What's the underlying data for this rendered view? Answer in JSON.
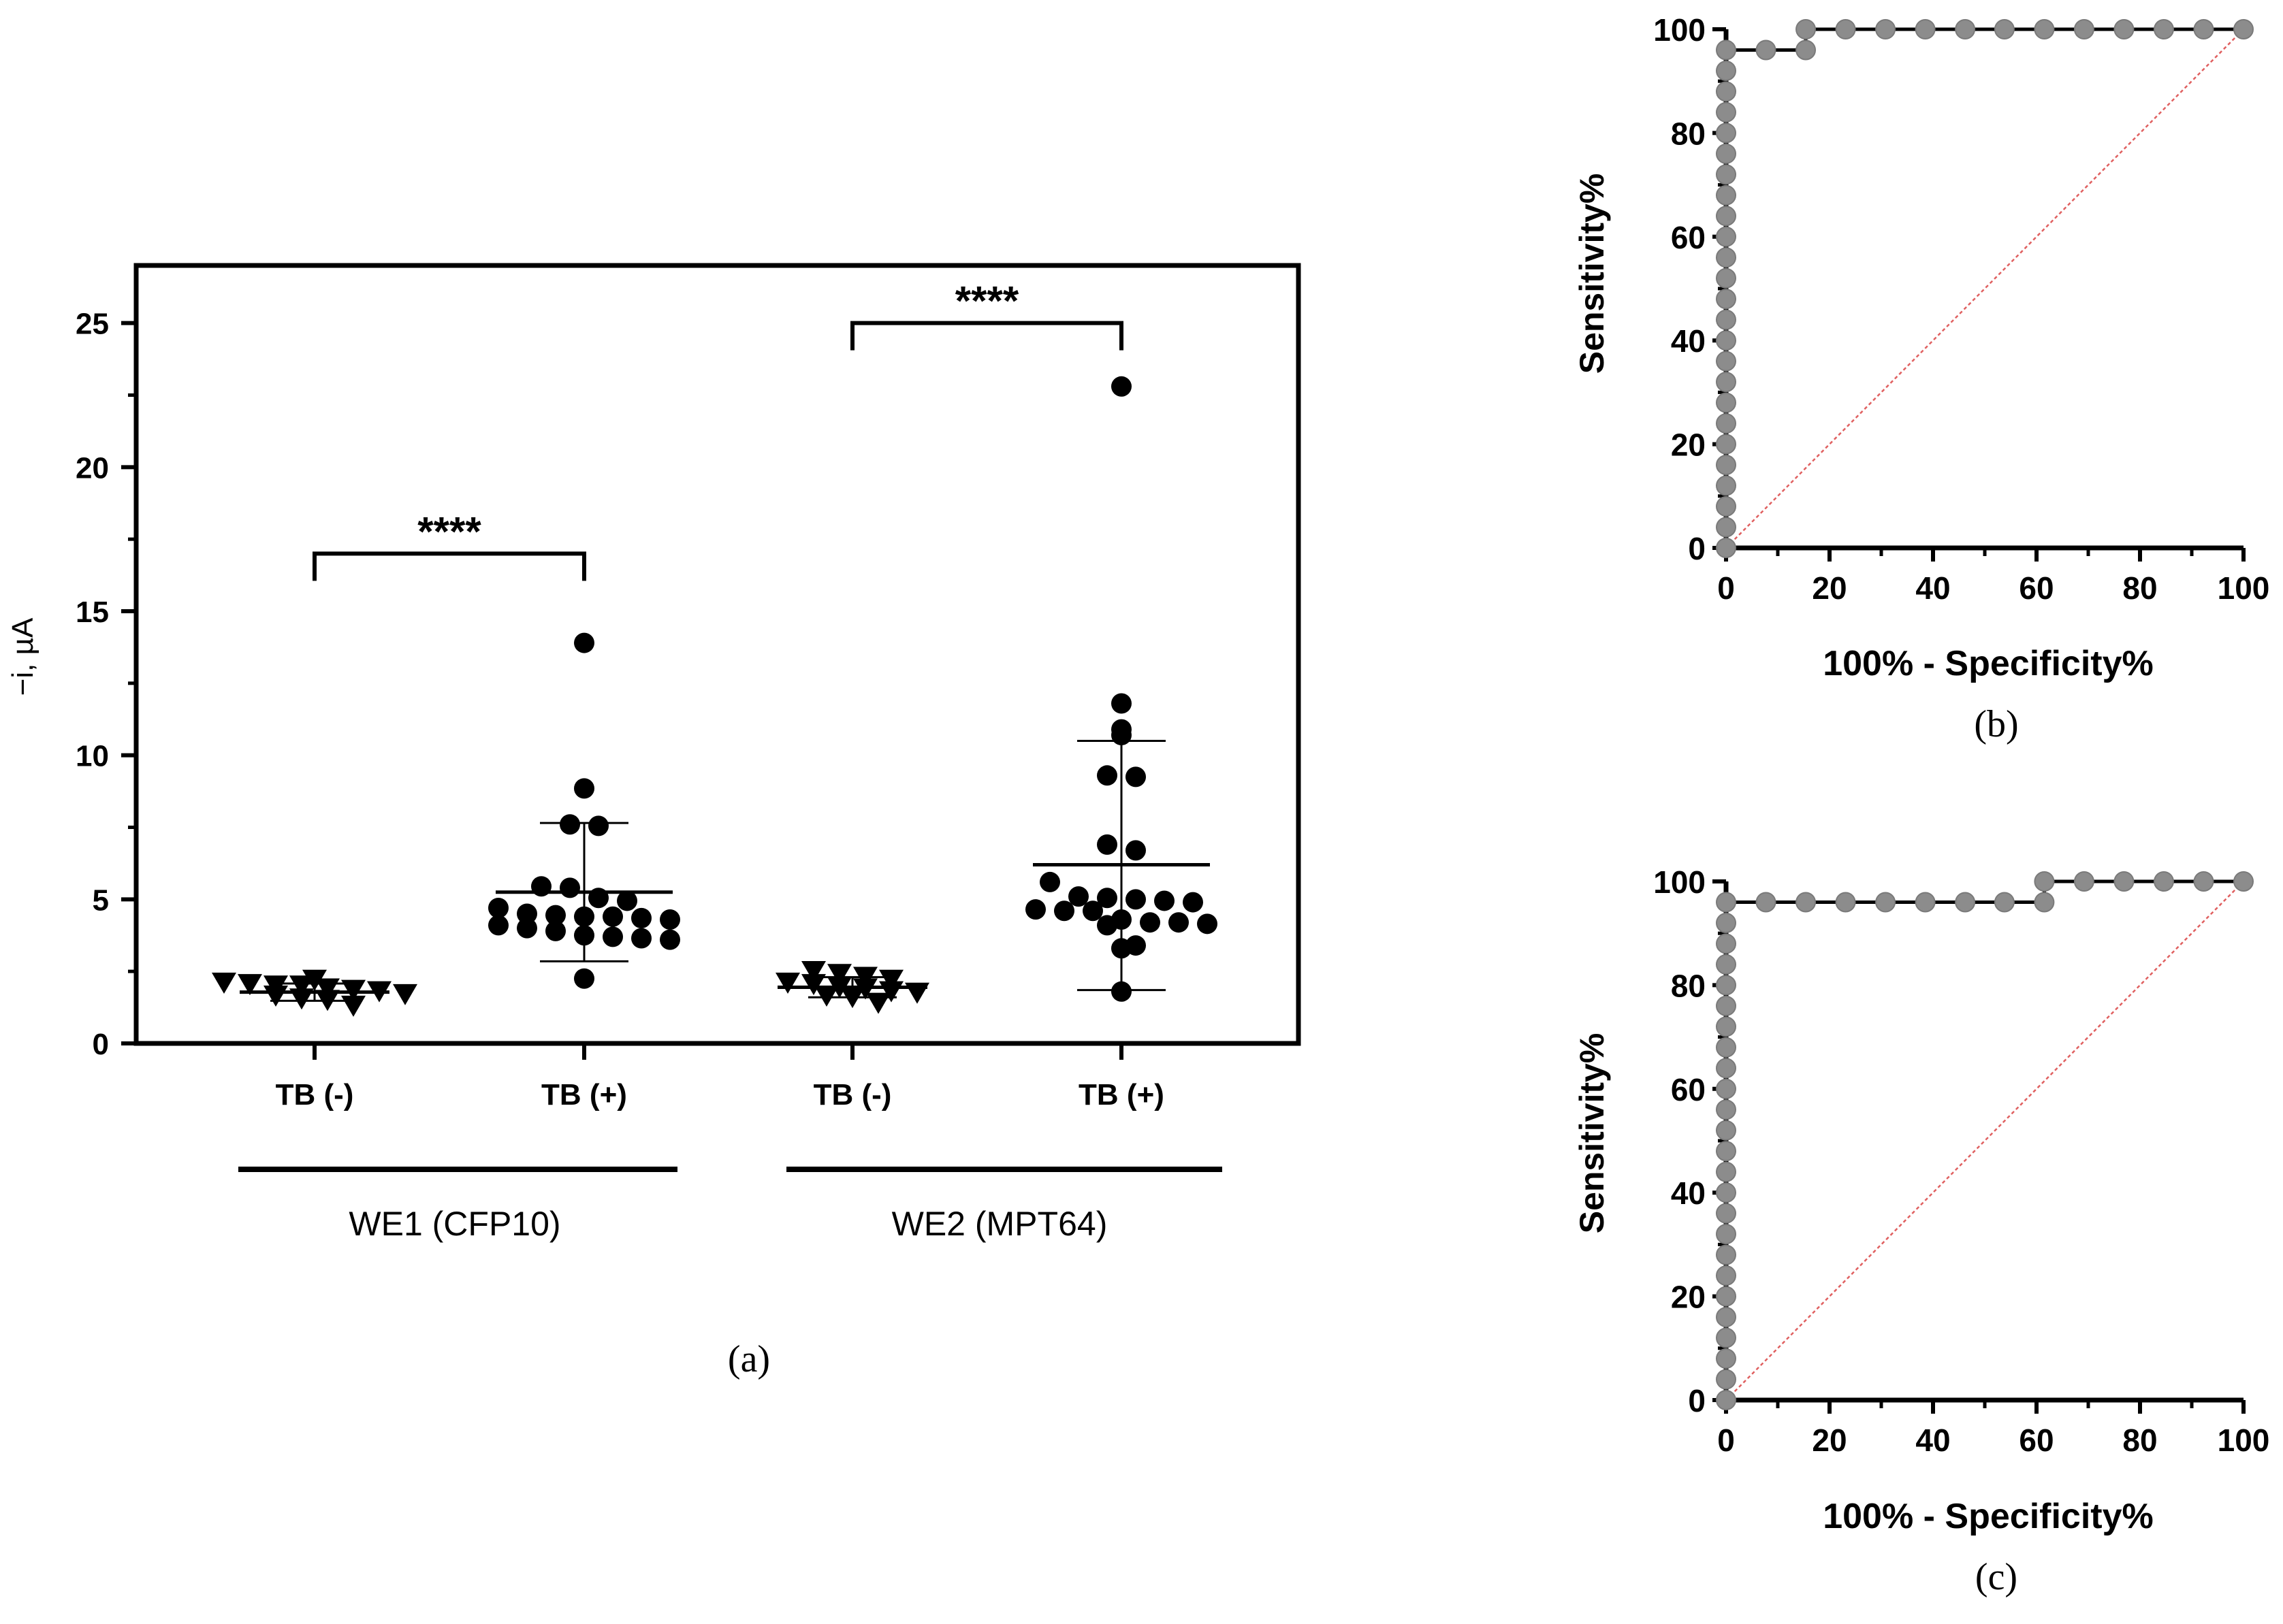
{
  "chart_data": [
    {
      "id": "a",
      "type": "scatter",
      "panel_label": "(a)",
      "title": "",
      "ylabel": "−i, µA",
      "ylim": [
        0,
        27
      ],
      "yticks": [
        0,
        5,
        10,
        15,
        20,
        25
      ],
      "categories": [
        "TB (-)",
        "TB (+)",
        "TB (-)",
        "TB (+)"
      ],
      "groups": [
        {
          "name": "WE1 (CFP10)",
          "categories": [
            0,
            1
          ]
        },
        {
          "name": "WE2 (MPT64)",
          "categories": [
            2,
            3
          ]
        }
      ],
      "series": [
        {
          "name": "WE1 TB (-)",
          "category": 0,
          "marker": "triangle-down",
          "values": [
            1.95,
            1.7,
            2.05,
            1.55,
            2.25,
            1.9,
            1.35,
            2.15,
            1.6,
            2.1,
            1.75,
            1.85,
            2.05
          ],
          "mean": 1.78,
          "sd_low": 1.48,
          "sd_high": 2.08
        },
        {
          "name": "WE1 TB (+)",
          "category": 1,
          "marker": "circle",
          "values": [
            13.9,
            8.85,
            7.55,
            7.6,
            5.45,
            5.4,
            5.05,
            4.95,
            4.7,
            4.5,
            4.45,
            4.4,
            4.4,
            4.35,
            4.3,
            4.1,
            4.0,
            3.9,
            3.75,
            3.7,
            3.65,
            3.6,
            2.25
          ],
          "mean": 5.25,
          "sd_low": 2.85,
          "sd_high": 7.65
        },
        {
          "name": "WE2 TB (-)",
          "category": 2,
          "marker": "triangle-down",
          "values": [
            2.1,
            1.85,
            2.35,
            1.65,
            2.45,
            2.0,
            1.45,
            2.25,
            1.7,
            2.55,
            1.8,
            1.95,
            2.15
          ],
          "mean": 1.95,
          "sd_low": 1.6,
          "sd_high": 2.3
        },
        {
          "name": "WE2 TB (+)",
          "category": 3,
          "marker": "circle",
          "values": [
            22.8,
            11.8,
            10.9,
            10.7,
            9.3,
            9.25,
            6.9,
            6.7,
            5.6,
            5.1,
            5.05,
            5.0,
            4.95,
            4.9,
            4.65,
            4.6,
            4.6,
            4.3,
            4.2,
            4.2,
            4.15,
            4.1,
            3.4,
            3.3,
            1.8
          ],
          "mean": 6.2,
          "sd_low": 1.85,
          "sd_high": 10.5
        }
      ],
      "significance": [
        {
          "between": [
            0,
            1
          ],
          "label": "****",
          "y": 17
        },
        {
          "between": [
            2,
            3
          ],
          "label": "****",
          "y": 25
        }
      ]
    },
    {
      "id": "b",
      "type": "line",
      "panel_label": "(b)",
      "xlabel": "100% - Specificity%",
      "ylabel": "Sensitivity%",
      "xlim": [
        0,
        100
      ],
      "ylim": [
        0,
        100
      ],
      "xticks": [
        0,
        20,
        40,
        60,
        80,
        100
      ],
      "yticks": [
        0,
        20,
        40,
        60,
        80,
        100
      ],
      "reference_line": {
        "from": [
          0,
          0
        ],
        "to": [
          100,
          100
        ],
        "color": "#e06060"
      },
      "series": [
        {
          "name": "ROC",
          "x": [
            0,
            0,
            0,
            0,
            0,
            0,
            0,
            0,
            0,
            0,
            0,
            0,
            0,
            0,
            0,
            0,
            0,
            0,
            0,
            0,
            0,
            0,
            0,
            0,
            0,
            7.7,
            15.4,
            15.4,
            23.1,
            30.8,
            38.5,
            46.2,
            53.8,
            61.5,
            69.2,
            76.9,
            84.6,
            92.3,
            100
          ],
          "y": [
            0,
            4,
            8,
            12,
            16,
            20,
            24,
            28,
            32,
            36,
            40,
            44,
            48,
            52,
            56,
            60,
            64,
            68,
            72,
            76,
            80,
            84,
            88,
            92,
            96,
            96,
            96,
            100,
            100,
            100,
            100,
            100,
            100,
            100,
            100,
            100,
            100,
            100,
            100
          ]
        }
      ]
    },
    {
      "id": "c",
      "type": "line",
      "panel_label": "(c)",
      "xlabel": "100% - Specificity%",
      "ylabel": "Sensitivity%",
      "xlim": [
        0,
        100
      ],
      "ylim": [
        0,
        100
      ],
      "xticks": [
        0,
        20,
        40,
        60,
        80,
        100
      ],
      "yticks": [
        0,
        20,
        40,
        60,
        80,
        100
      ],
      "reference_line": {
        "from": [
          0,
          0
        ],
        "to": [
          100,
          100
        ],
        "color": "#e06060"
      },
      "series": [
        {
          "name": "ROC",
          "x": [
            0,
            0,
            0,
            0,
            0,
            0,
            0,
            0,
            0,
            0,
            0,
            0,
            0,
            0,
            0,
            0,
            0,
            0,
            0,
            0,
            0,
            0,
            0,
            0,
            0,
            7.7,
            15.4,
            23.1,
            30.8,
            38.5,
            46.2,
            53.8,
            61.5,
            61.5,
            69.2,
            76.9,
            84.6,
            92.3,
            100
          ],
          "y": [
            0,
            4,
            8,
            12,
            16,
            20,
            24,
            28,
            32,
            36,
            40,
            44,
            48,
            52,
            56,
            60,
            64,
            68,
            72,
            76,
            80,
            84,
            88,
            92,
            96,
            96,
            96,
            96,
            96,
            96,
            96,
            96,
            96,
            100,
            100,
            100,
            100,
            100,
            100
          ]
        }
      ]
    }
  ]
}
